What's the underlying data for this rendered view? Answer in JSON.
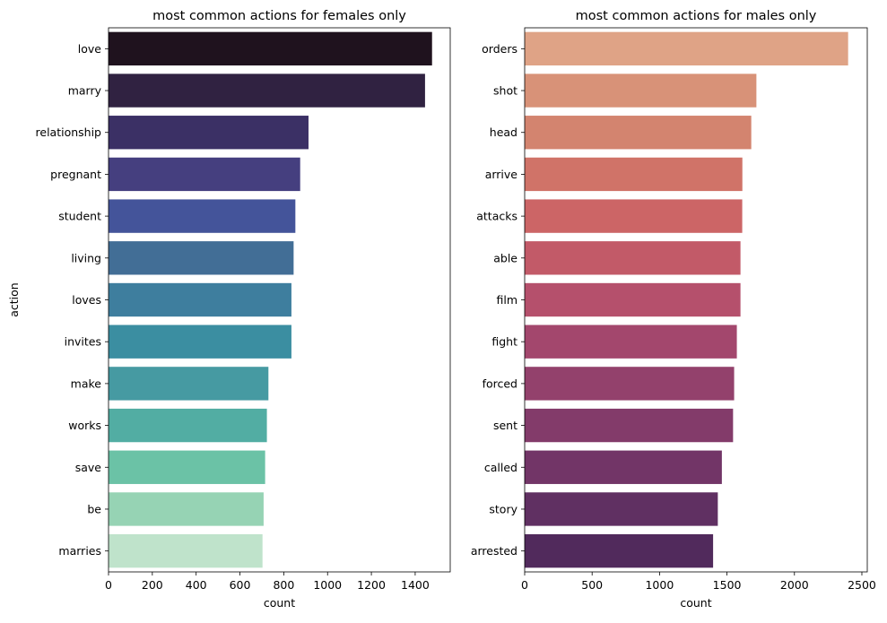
{
  "chart_data": [
    {
      "type": "bar",
      "orientation": "horizontal",
      "title": "most common actions for females only",
      "xlabel": "count",
      "ylabel": "action",
      "xlim": [
        0,
        1560
      ],
      "xticks": [
        0,
        200,
        400,
        600,
        800,
        1000,
        1200,
        1400
      ],
      "grid": false,
      "categories": [
        "love",
        "marry",
        "relationship",
        "pregnant",
        "student",
        "living",
        "loves",
        "invites",
        "make",
        "works",
        "save",
        "be",
        "marries"
      ],
      "values": [
        1477,
        1445,
        913,
        875,
        853,
        845,
        835,
        835,
        730,
        723,
        715,
        708,
        703
      ],
      "colors": [
        "#1f121e",
        "#302241",
        "#3b3065",
        "#453f7f",
        "#44549a",
        "#426e96",
        "#3e7e9e",
        "#3b8ea1",
        "#469aa2",
        "#52ada3",
        "#6bc2a6",
        "#96d3b4",
        "#bfe3cb"
      ]
    },
    {
      "type": "bar",
      "orientation": "horizontal",
      "title": "most common actions for males only",
      "xlabel": "count",
      "ylabel": "",
      "xlim": [
        0,
        2540
      ],
      "xticks": [
        0,
        500,
        1000,
        1500,
        2000,
        2500
      ],
      "grid": false,
      "categories": [
        "orders",
        "shot",
        "head",
        "arrive",
        "attacks",
        "able",
        "film",
        "fight",
        "forced",
        "sent",
        "called",
        "story",
        "arrested"
      ],
      "values": [
        2398,
        1718,
        1680,
        1614,
        1613,
        1600,
        1600,
        1573,
        1553,
        1545,
        1462,
        1432,
        1397
      ],
      "colors": [
        "#dfa386",
        "#d89278",
        "#d3846f",
        "#d07368",
        "#cc6566",
        "#c25a68",
        "#b5506c",
        "#a3476d",
        "#93416c",
        "#833b6a",
        "#723567",
        "#603062",
        "#512a5c"
      ]
    }
  ]
}
